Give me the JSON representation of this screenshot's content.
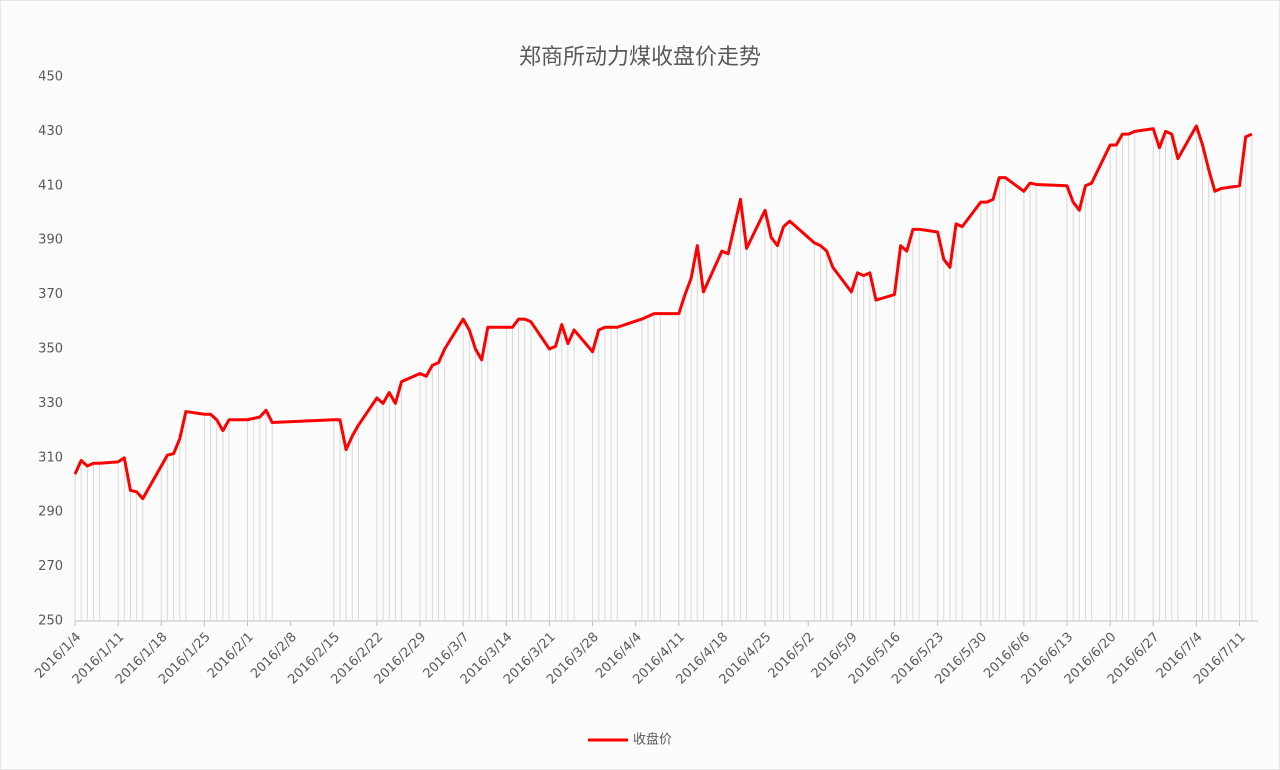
{
  "chart_data": {
    "type": "line",
    "title": "郑商所动力煤收盘价走势",
    "x": [
      "2016/1/4",
      "2016/1/5",
      "2016/1/6",
      "2016/1/7",
      "2016/1/8",
      "2016/1/11",
      "2016/1/12",
      "2016/1/13",
      "2016/1/14",
      "2016/1/15",
      "2016/1/18",
      "2016/1/19",
      "2016/1/20",
      "2016/1/21",
      "2016/1/22",
      "2016/1/25",
      "2016/1/26",
      "2016/1/27",
      "2016/1/28",
      "2016/1/29",
      "2016/2/1",
      "2016/2/2",
      "2016/2/3",
      "2016/2/4",
      "2016/2/5",
      "2016/2/15",
      "2016/2/16",
      "2016/2/17",
      "2016/2/18",
      "2016/2/19",
      "2016/2/22",
      "2016/2/23",
      "2016/2/24",
      "2016/2/25",
      "2016/2/26",
      "2016/2/29",
      "2016/3/1",
      "2016/3/2",
      "2016/3/3",
      "2016/3/4",
      "2016/3/7",
      "2016/3/8",
      "2016/3/9",
      "2016/3/10",
      "2016/3/11",
      "2016/3/14",
      "2016/3/15",
      "2016/3/16",
      "2016/3/17",
      "2016/3/18",
      "2016/3/21",
      "2016/3/22",
      "2016/3/23",
      "2016/3/24",
      "2016/3/25",
      "2016/3/28",
      "2016/3/29",
      "2016/3/30",
      "2016/3/31",
      "2016/4/1",
      "2016/4/5",
      "2016/4/6",
      "2016/4/7",
      "2016/4/8",
      "2016/4/11",
      "2016/4/12",
      "2016/4/13",
      "2016/4/14",
      "2016/4/15",
      "2016/4/18",
      "2016/4/19",
      "2016/4/20",
      "2016/4/21",
      "2016/4/22",
      "2016/4/25",
      "2016/4/26",
      "2016/4/27",
      "2016/4/28",
      "2016/4/29",
      "2016/5/3",
      "2016/5/4",
      "2016/5/5",
      "2016/5/6",
      "2016/5/9",
      "2016/5/10",
      "2016/5/11",
      "2016/5/12",
      "2016/5/13",
      "2016/5/16",
      "2016/5/17",
      "2016/5/18",
      "2016/5/19",
      "2016/5/20",
      "2016/5/23",
      "2016/5/24",
      "2016/5/25",
      "2016/5/26",
      "2016/5/27",
      "2016/5/30",
      "2016/5/31",
      "2016/6/1",
      "2016/6/2",
      "2016/6/3",
      "2016/6/6",
      "2016/6/7",
      "2016/6/8",
      "2016/6/13",
      "2016/6/14",
      "2016/6/15",
      "2016/6/16",
      "2016/6/17",
      "2016/6/20",
      "2016/6/21",
      "2016/6/22",
      "2016/6/23",
      "2016/6/24",
      "2016/6/27",
      "2016/6/28",
      "2016/6/29",
      "2016/6/30",
      "2016/7/1",
      "2016/7/4",
      "2016/7/5",
      "2016/7/6",
      "2016/7/7",
      "2016/7/8",
      "2016/7/11",
      "2016/7/12",
      "2016/7/13"
    ],
    "series": [
      {
        "name": "收盘价",
        "color": "#ff0000",
        "values": [
          304,
          309,
          307,
          308,
          308,
          308.5,
          310,
          298,
          297.5,
          295,
          307,
          311,
          311.5,
          317,
          327,
          326,
          326,
          324,
          320,
          324,
          324,
          324.5,
          325,
          327.5,
          323,
          324,
          324,
          313,
          318,
          322,
          332,
          330,
          334,
          330,
          338,
          341,
          340,
          344,
          345,
          350,
          361,
          357,
          350,
          346,
          358,
          358,
          358,
          361,
          361,
          360,
          350,
          351,
          359,
          352,
          357,
          349,
          357,
          358,
          358,
          358,
          361,
          362,
          363,
          363,
          363,
          370,
          376,
          388,
          371,
          386,
          385,
          395,
          405,
          387,
          401,
          391,
          388,
          395,
          397,
          389,
          388,
          386,
          380,
          371,
          378,
          377,
          378,
          368,
          370,
          388,
          386,
          394,
          394,
          393,
          383,
          380,
          396,
          395,
          404,
          404,
          405,
          413,
          413,
          408,
          411,
          410.5,
          410,
          404,
          401,
          410,
          411,
          425,
          425,
          429,
          429,
          430,
          431,
          424,
          430,
          429,
          420,
          432,
          425,
          416,
          408,
          409,
          410,
          428,
          429
        ]
      }
    ],
    "xlim": [
      "2016/1/4",
      "2016/7/14"
    ],
    "xticks": [
      "2016/1/4",
      "2016/1/11",
      "2016/1/18",
      "2016/1/25",
      "2016/2/1",
      "2016/2/8",
      "2016/2/15",
      "2016/2/22",
      "2016/2/29",
      "2016/3/7",
      "2016/3/14",
      "2016/3/21",
      "2016/3/28",
      "2016/4/4",
      "2016/4/11",
      "2016/4/18",
      "2016/4/25",
      "2016/5/2",
      "2016/5/9",
      "2016/5/16",
      "2016/5/23",
      "2016/5/30",
      "2016/6/6",
      "2016/6/13",
      "2016/6/20",
      "2016/6/27",
      "2016/7/4",
      "2016/7/11"
    ],
    "ylim": [
      250,
      450
    ],
    "yticks": [
      250,
      270,
      290,
      310,
      330,
      350,
      370,
      390,
      410,
      430,
      450
    ],
    "drop_lines": true,
    "drop_line_color": "#d9d9d9",
    "grid": false,
    "legend": "bottom"
  }
}
